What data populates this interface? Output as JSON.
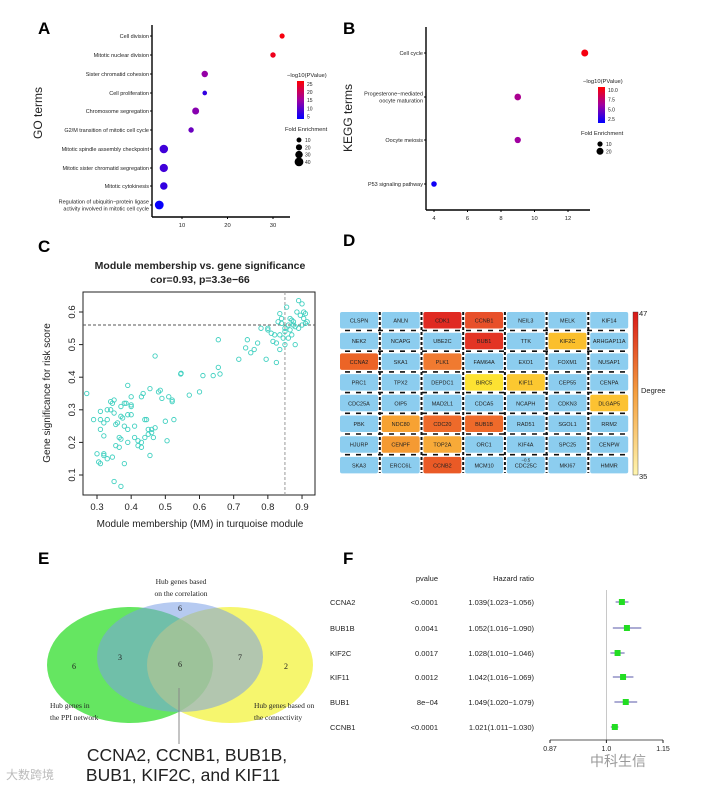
{
  "panels": {
    "A": "A",
    "B": "B",
    "C": "C",
    "D": "D",
    "E": "E",
    "F": "F"
  },
  "chart_data": [
    {
      "type": "scatter",
      "panel": "A",
      "ylabel": "GO terms",
      "xlabel": "",
      "x_ticks": [
        10,
        20,
        30
      ],
      "xlim": [
        4,
        33
      ],
      "color_legend": {
        "title": "−log10(PValue)",
        "ticks": [
          25,
          20,
          15,
          10,
          5
        ],
        "range": [
          3.5,
          26
        ],
        "low_color": "#0000ff",
        "high_color": "#ff0000"
      },
      "size_legend": {
        "title": "Fold Enrichment",
        "ticks": [
          10,
          20,
          30,
          40
        ]
      },
      "terms": [
        {
          "lines": [
            "Cell division"
          ],
          "x": 32,
          "neglog10p": 25,
          "size": 12
        },
        {
          "lines": [
            "Mitotic nuclear division"
          ],
          "x": 30,
          "neglog10p": 24,
          "size": 14
        },
        {
          "lines": [
            "Sister chromatid cohesion"
          ],
          "x": 15,
          "neglog10p": 14,
          "size": 22
        },
        {
          "lines": [
            "Cell proliferation"
          ],
          "x": 15,
          "neglog10p": 7,
          "size": 8
        },
        {
          "lines": [
            "Chromosome segregation"
          ],
          "x": 13,
          "neglog10p": 13,
          "size": 26
        },
        {
          "lines": [
            "G2/M transition of mitotic cell cycle"
          ],
          "x": 12,
          "neglog10p": 11,
          "size": 14
        },
        {
          "lines": [
            "Mitotic spindle assembly checkpoint"
          ],
          "x": 6,
          "neglog10p": 8,
          "size": 38
        },
        {
          "lines": [
            "Mitotic sister chromatid segregation"
          ],
          "x": 6,
          "neglog10p": 8,
          "size": 36
        },
        {
          "lines": [
            "Mitotic cytokinesis"
          ],
          "x": 6,
          "neglog10p": 7,
          "size": 30
        },
        {
          "lines": [
            "Regulation of ubiquitin−protein ligase",
            "activity involved in mitotic cell cycle"
          ],
          "x": 5,
          "neglog10p": 4,
          "size": 40
        }
      ]
    },
    {
      "type": "scatter",
      "panel": "B",
      "ylabel": "KEGG terms",
      "xlabel": "",
      "x_ticks": [
        4,
        6,
        8,
        10,
        12
      ],
      "xlim": [
        3.5,
        13.5
      ],
      "color_legend": {
        "title": "−log10(PValue)",
        "ticks": [
          "10.0",
          "7.5",
          "5.0",
          "2.5"
        ],
        "range": [
          1.5,
          11.5
        ],
        "low_color": "#0000ff",
        "high_color": "#ff0000"
      },
      "size_legend": {
        "title": "Fold Enrichment",
        "ticks": [
          10,
          20
        ]
      },
      "terms": [
        {
          "lines": [
            "Cell cycle"
          ],
          "x": 13,
          "neglog10p": 11,
          "size": 20
        },
        {
          "lines": [
            "Progesterone−mediated",
            "oocyte maturation"
          ],
          "x": 9,
          "neglog10p": 7,
          "size": 18
        },
        {
          "lines": [
            "Oocyte meiosis"
          ],
          "x": 9,
          "neglog10p": 6.5,
          "size": 16
        },
        {
          "lines": [
            "P53 signaling pathway"
          ],
          "x": 4,
          "neglog10p": 2,
          "size": 12
        }
      ]
    },
    {
      "type": "scatter",
      "panel": "C",
      "title": "Module membership vs. gene significance",
      "subtitle": "cor=0.93, p=3.3e−66",
      "xlabel": "Module membership (MM) in turquoise module",
      "ylabel": "Gene significance for risk score",
      "x_ticks": [
        "0.3",
        "0.4",
        "0.5",
        "0.6",
        "0.7",
        "0.8",
        "0.9"
      ],
      "y_ticks": [
        "0.1",
        "0.2",
        "0.3",
        "0.4",
        "0.5",
        "0.6"
      ],
      "xlim": [
        0.26,
        0.94
      ],
      "ylim": [
        0.04,
        0.66
      ],
      "threshold_x": 0.85,
      "threshold_y": 0.56,
      "point_color": "#40d0c0",
      "points": [
        [
          0.27,
          0.35
        ],
        [
          0.29,
          0.27
        ],
        [
          0.3,
          0.165
        ],
        [
          0.305,
          0.14
        ],
        [
          0.31,
          0.135
        ],
        [
          0.31,
          0.24
        ],
        [
          0.31,
          0.295
        ],
        [
          0.31,
          0.27
        ],
        [
          0.32,
          0.16
        ],
        [
          0.32,
          0.165
        ],
        [
          0.32,
          0.22
        ],
        [
          0.32,
          0.26
        ],
        [
          0.33,
          0.15
        ],
        [
          0.33,
          0.3
        ],
        [
          0.33,
          0.27
        ],
        [
          0.34,
          0.325
        ],
        [
          0.34,
          0.3
        ],
        [
          0.345,
          0.155
        ],
        [
          0.345,
          0.32
        ],
        [
          0.35,
          0.08
        ],
        [
          0.35,
          0.29
        ],
        [
          0.35,
          0.33
        ],
        [
          0.355,
          0.255
        ],
        [
          0.355,
          0.19
        ],
        [
          0.36,
          0.26
        ],
        [
          0.365,
          0.185
        ],
        [
          0.365,
          0.215
        ],
        [
          0.37,
          0.065
        ],
        [
          0.37,
          0.21
        ],
        [
          0.37,
          0.31
        ],
        [
          0.37,
          0.28
        ],
        [
          0.375,
          0.275
        ],
        [
          0.38,
          0.135
        ],
        [
          0.38,
          0.32
        ],
        [
          0.38,
          0.25
        ],
        [
          0.385,
          0.32
        ],
        [
          0.39,
          0.285
        ],
        [
          0.39,
          0.24
        ],
        [
          0.39,
          0.2
        ],
        [
          0.39,
          0.375
        ],
        [
          0.4,
          0.34
        ],
        [
          0.4,
          0.31
        ],
        [
          0.4,
          0.315
        ],
        [
          0.4,
          0.285
        ],
        [
          0.41,
          0.25
        ],
        [
          0.41,
          0.215
        ],
        [
          0.42,
          0.19
        ],
        [
          0.42,
          0.205
        ],
        [
          0.43,
          0.2
        ],
        [
          0.43,
          0.185
        ],
        [
          0.43,
          0.34
        ],
        [
          0.435,
          0.35
        ],
        [
          0.44,
          0.27
        ],
        [
          0.44,
          0.215
        ],
        [
          0.445,
          0.27
        ],
        [
          0.45,
          0.24
        ],
        [
          0.45,
          0.225
        ],
        [
          0.455,
          0.16
        ],
        [
          0.455,
          0.365
        ],
        [
          0.46,
          0.24
        ],
        [
          0.46,
          0.23
        ],
        [
          0.465,
          0.215
        ],
        [
          0.47,
          0.245
        ],
        [
          0.47,
          0.465
        ],
        [
          0.48,
          0.355
        ],
        [
          0.485,
          0.36
        ],
        [
          0.49,
          0.335
        ],
        [
          0.5,
          0.265
        ],
        [
          0.505,
          0.205
        ],
        [
          0.51,
          0.34
        ],
        [
          0.52,
          0.33
        ],
        [
          0.52,
          0.325
        ],
        [
          0.525,
          0.27
        ],
        [
          0.545,
          0.41
        ],
        [
          0.546,
          0.412
        ],
        [
          0.57,
          0.345
        ],
        [
          0.6,
          0.355
        ],
        [
          0.61,
          0.405
        ],
        [
          0.64,
          0.405
        ],
        [
          0.655,
          0.43
        ],
        [
          0.655,
          0.515
        ],
        [
          0.66,
          0.41
        ],
        [
          0.715,
          0.455
        ],
        [
          0.735,
          0.49
        ],
        [
          0.74,
          0.515
        ],
        [
          0.75,
          0.475
        ],
        [
          0.76,
          0.485
        ],
        [
          0.77,
          0.505
        ],
        [
          0.78,
          0.55
        ],
        [
          0.795,
          0.455
        ],
        [
          0.8,
          0.545
        ],
        [
          0.8,
          0.55
        ],
        [
          0.81,
          0.535
        ],
        [
          0.815,
          0.51
        ],
        [
          0.82,
          0.53
        ],
        [
          0.825,
          0.505
        ],
        [
          0.825,
          0.445
        ],
        [
          0.83,
          0.57
        ],
        [
          0.835,
          0.485
        ],
        [
          0.835,
          0.53
        ],
        [
          0.835,
          0.595
        ],
        [
          0.84,
          0.565
        ],
        [
          0.84,
          0.58
        ],
        [
          0.845,
          0.52
        ],
        [
          0.85,
          0.55
        ],
        [
          0.85,
          0.5
        ],
        [
          0.85,
          0.54
        ],
        [
          0.855,
          0.615
        ],
        [
          0.86,
          0.52
        ],
        [
          0.86,
          0.56
        ],
        [
          0.865,
          0.58
        ],
        [
          0.865,
          0.545
        ],
        [
          0.87,
          0.575
        ],
        [
          0.87,
          0.53
        ],
        [
          0.875,
          0.56
        ],
        [
          0.875,
          0.57
        ],
        [
          0.88,
          0.5
        ],
        [
          0.88,
          0.555
        ],
        [
          0.885,
          0.6
        ],
        [
          0.89,
          0.635
        ],
        [
          0.89,
          0.55
        ],
        [
          0.895,
          0.59
        ],
        [
          0.9,
          0.625
        ],
        [
          0.9,
          0.56
        ],
        [
          0.905,
          0.6
        ],
        [
          0.905,
          0.58
        ],
        [
          0.91,
          0.595
        ],
        [
          0.915,
          0.57
        ],
        [
          0.91,
          0.565
        ]
      ]
    },
    {
      "type": "table",
      "panel": "F",
      "headers": {
        "pvalue": "pvalue",
        "hr": "Hazard ratio"
      },
      "x_ticks": [
        "0.87",
        "1.0",
        "1.15"
      ],
      "xlim": [
        0.87,
        1.15
      ],
      "x_scale": "log",
      "reference": 1.0,
      "point_color": "#22dd22",
      "ci_color": "#5a5aa8",
      "rows": [
        {
          "gene": "CCNA2",
          "pvalue": "<0.0001",
          "hr_text": "1.039(1.023−1.056)",
          "hr": 1.039,
          "lo": 1.023,
          "hi": 1.056
        },
        {
          "gene": "BUB1B",
          "pvalue": "0.0041",
          "hr_text": "1.052(1.016−1.090)",
          "hr": 1.052,
          "lo": 1.016,
          "hi": 1.09
        },
        {
          "gene": "KIF2C",
          "pvalue": "0.0017",
          "hr_text": "1.028(1.010−1.046)",
          "hr": 1.028,
          "lo": 1.01,
          "hi": 1.046
        },
        {
          "gene": "KIF11",
          "pvalue": "0.0012",
          "hr_text": "1.042(1.016−1.069)",
          "hr": 1.042,
          "lo": 1.016,
          "hi": 1.069
        },
        {
          "gene": "BUB1",
          "pvalue": "8e−04",
          "hr_text": "1.049(1.020−1.079)",
          "hr": 1.049,
          "lo": 1.02,
          "hi": 1.079
        },
        {
          "gene": "CCNB1",
          "pvalue": "<0.0001",
          "hr_text": "1.021(1.011−1.030)",
          "hr": 1.021,
          "lo": 1.011,
          "hi": 1.03
        }
      ]
    }
  ],
  "network": {
    "legend_title": "Degree",
    "legend_max": "47",
    "legend_min": "35",
    "edge_label": "−0.5",
    "default_color": "#8ccdef",
    "grid": [
      [
        [
          "CLSPN",
          null
        ],
        [
          "ANLN",
          null
        ],
        [
          "CDK1",
          "#e02a22"
        ],
        [
          "CCNB1",
          "#e8502a"
        ],
        [
          "NEIL3",
          null
        ],
        [
          "MELK",
          null
        ],
        [
          "KIF14",
          null
        ]
      ],
      [
        [
          "NEK2",
          null
        ],
        [
          "NCAPG",
          null
        ],
        [
          "UBE2C",
          null
        ],
        [
          "BUB1",
          "#e33424"
        ],
        [
          "TTK",
          null
        ],
        [
          "KIF2C",
          "#fbbf2c"
        ],
        [
          "ARHGAP11A",
          null
        ]
      ],
      [
        [
          "CCNA2",
          "#ec6426"
        ],
        [
          "SKA1",
          null
        ],
        [
          "PLK1",
          "#f07a30"
        ],
        [
          "FAM64A",
          null
        ],
        [
          "EXO1",
          null
        ],
        [
          "FOXM1",
          null
        ],
        [
          "NUSAP1",
          null
        ]
      ],
      [
        [
          "PRC1",
          null
        ],
        [
          "TPX2",
          null
        ],
        [
          "DEPDC1",
          null
        ],
        [
          "BIRC5",
          "#fde232"
        ],
        [
          "KIF11",
          "#fcc830"
        ],
        [
          "CEP55",
          null
        ],
        [
          "CENPA",
          null
        ]
      ],
      [
        [
          "CDC25A",
          null
        ],
        [
          "OIP5",
          null
        ],
        [
          "MAD2L1",
          null
        ],
        [
          "CDCA5",
          null
        ],
        [
          "NCAPH",
          null
        ],
        [
          "CDKN3",
          null
        ],
        [
          "DLGAP5",
          "#fcc232"
        ]
      ],
      [
        [
          "PBK",
          null
        ],
        [
          "NDC80",
          "#f7a232"
        ],
        [
          "CDC20",
          "#ee6a2a"
        ],
        [
          "BUB1B",
          "#ee6a2a"
        ],
        [
          "RAD51",
          null
        ],
        [
          "SGOL1",
          null
        ],
        [
          "RRM2",
          null
        ]
      ],
      [
        [
          "HJURP",
          null
        ],
        [
          "CENPF",
          "#f59a32"
        ],
        [
          "TOP2A",
          "#f8aa38"
        ],
        [
          "ORC1",
          null
        ],
        [
          "KIF4A",
          null
        ],
        [
          "SPC25",
          null
        ],
        [
          "CENPW",
          null
        ]
      ],
      [
        [
          "SKA3",
          null
        ],
        [
          "ERCC6L",
          null
        ],
        [
          "CCNB2",
          "#ea5a26"
        ],
        [
          "MCM10",
          null
        ],
        [
          "CDC25C",
          null
        ],
        [
          "MKI67",
          null
        ],
        [
          "HMMR",
          null
        ]
      ]
    ]
  },
  "venn": {
    "sets": {
      "correlation": [
        "Hub genes based",
        "on the correlation"
      ],
      "ppi": [
        "Hub genes in",
        "the PPI network"
      ],
      "connectivity": [
        "Hub genes based on",
        "the connectivity"
      ]
    },
    "counts": {
      "ppi_only": "6",
      "correlation_only": "6",
      "connectivity_only": "2",
      "ppi_correlation": "3",
      "correlation_connectivity": "7",
      "all_three": "6"
    },
    "callout": [
      "CCNA2, CCNB1, BUB1B,",
      "BUB1, KIF2C, and KIF11"
    ]
  },
  "watermarks": {
    "left": "大数跨境",
    "right": "中科生信"
  }
}
